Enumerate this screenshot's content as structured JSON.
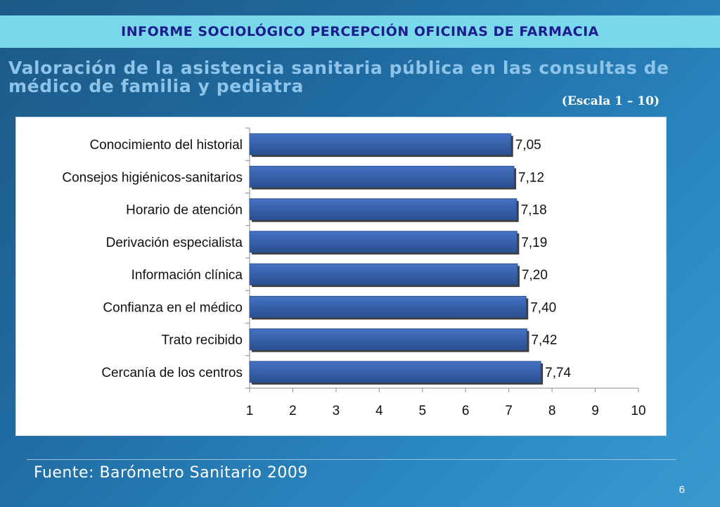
{
  "header": {
    "banner": "INFORME SOCIOLÓGICO PERCEPCIÓN OFICINAS DE FARMACIA",
    "title_line1": "Valoración de la asistencia sanitaria pública en las consultas de",
    "title_line2": "médico de familia y pediatra",
    "scale_note": "(Escala 1 – 10)"
  },
  "footer": {
    "source": "Fuente: Barómetro Sanitario 2009",
    "page_number": "6"
  },
  "colors": {
    "bar": "#4472c4",
    "bar_dark": "#2b4f8f",
    "banner": "#79d9ea",
    "banner_text": "#1c1c8f"
  },
  "chart_data": {
    "type": "bar",
    "orientation": "horizontal",
    "categories": [
      "Conocimiento del historial",
      "Consejos higiénicos-sanitarios",
      "Horario de atención",
      "Derivación especialista",
      "Información clínica",
      "Confianza en el médico",
      "Trato recibido",
      "Cercanía de los centros"
    ],
    "values": [
      7.05,
      7.12,
      7.18,
      7.19,
      7.2,
      7.4,
      7.42,
      7.74
    ],
    "value_labels": [
      "7,05",
      "7,12",
      "7,18",
      "7,19",
      "7,20",
      "7,40",
      "7,42",
      "7,74"
    ],
    "xlim": [
      1,
      10
    ],
    "xticks": [
      "1",
      "2",
      "3",
      "4",
      "5",
      "6",
      "7",
      "8",
      "9",
      "10"
    ],
    "grid": false
  }
}
